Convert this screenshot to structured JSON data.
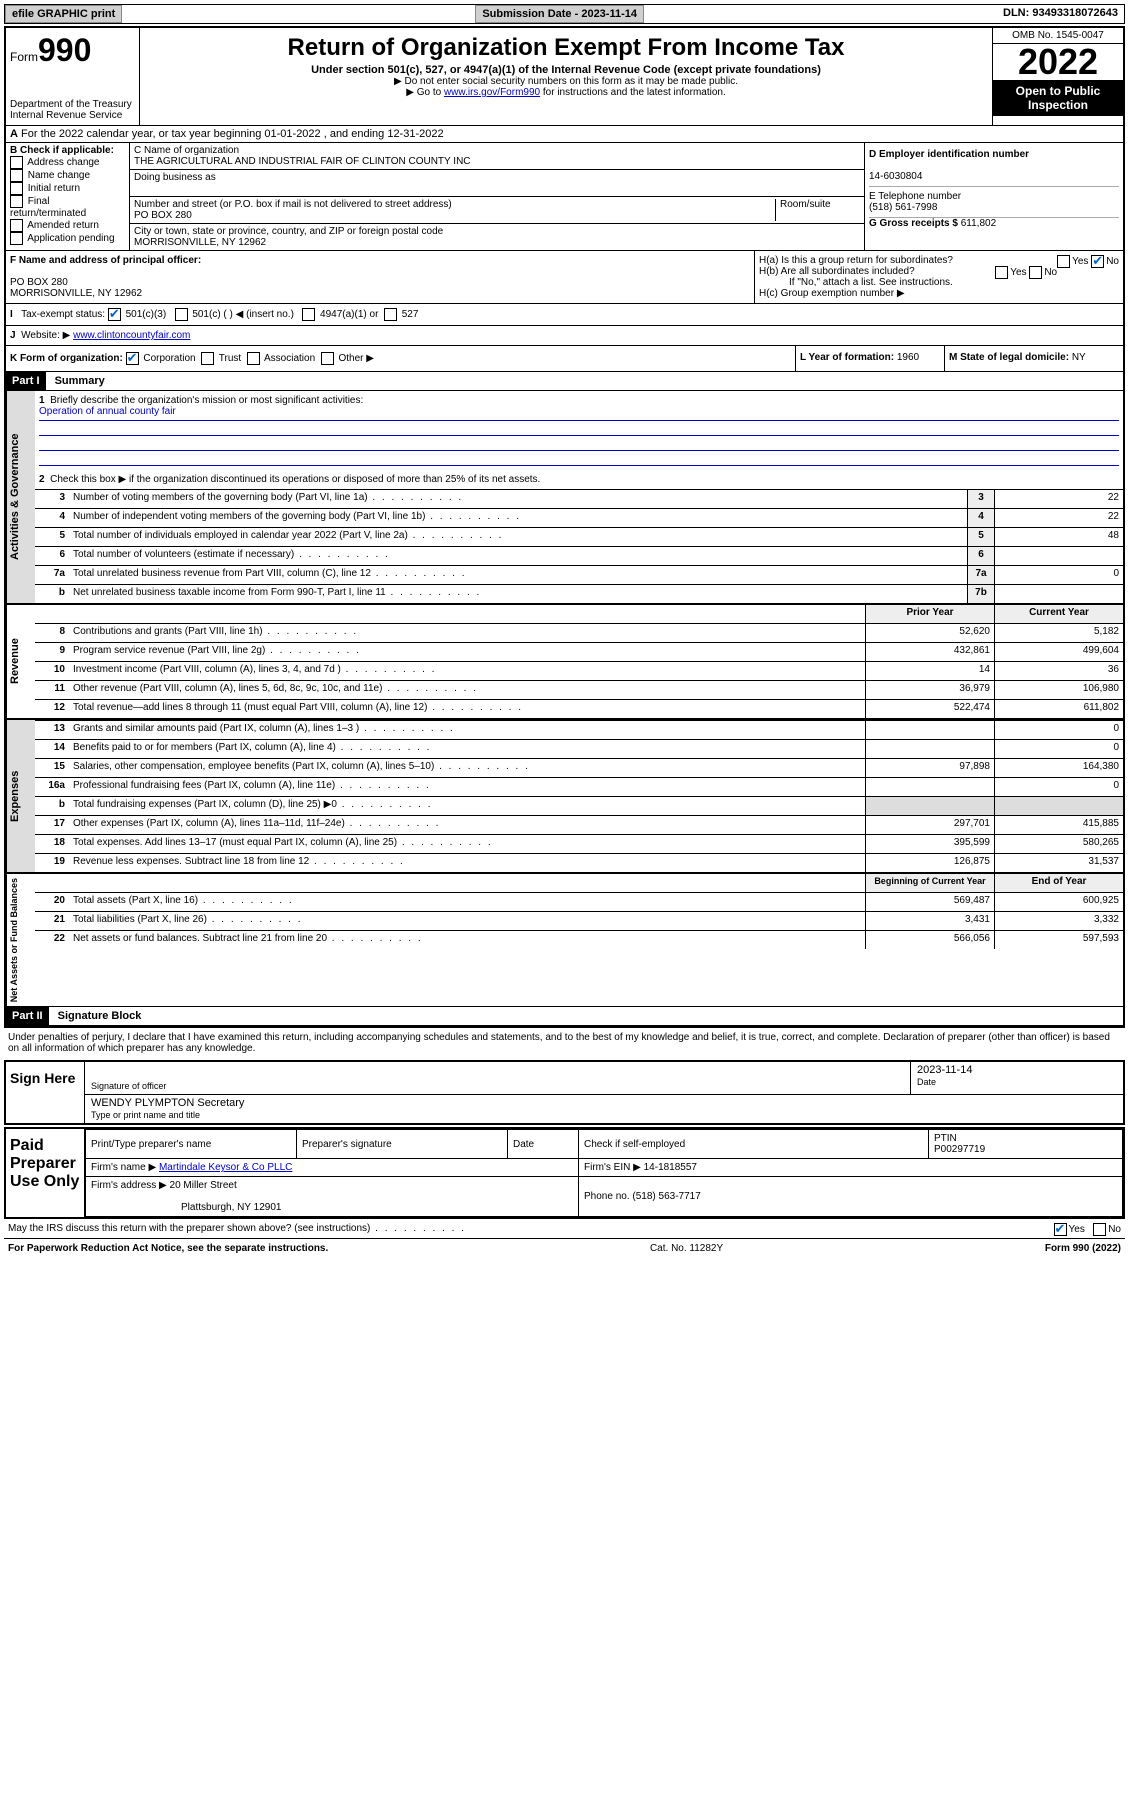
{
  "topbar": {
    "efile": "efile GRAPHIC print",
    "submission_label": "Submission Date - 2023-11-14",
    "dln": "DLN: 93493318072643"
  },
  "header": {
    "form_prefix": "Form",
    "form_number": "990",
    "dept": "Department of the Treasury\nInternal Revenue Service",
    "title": "Return of Organization Exempt From Income Tax",
    "subtitle": "Under section 501(c), 527, or 4947(a)(1) of the Internal Revenue Code (except private foundations)",
    "note1": "▶ Do not enter social security numbers on this form as it may be made public.",
    "note2_pre": "▶ Go to ",
    "note2_link": "www.irs.gov/Form990",
    "note2_post": " for instructions and the latest information.",
    "omb": "OMB No. 1545-0047",
    "year": "2022",
    "inspect": "Open to Public Inspection"
  },
  "row_a": "For the 2022 calendar year, or tax year beginning 01-01-2022   , and ending 12-31-2022",
  "section_b": {
    "label": "B Check if applicable:",
    "items": [
      "Address change",
      "Name change",
      "Initial return",
      "Final return/terminated",
      "Amended return",
      "Application pending"
    ]
  },
  "section_c": {
    "name_label": "C Name of organization",
    "name": "THE AGRICULTURAL AND INDUSTRIAL FAIR OF CLINTON COUNTY INC",
    "dba_label": "Doing business as",
    "street_label": "Number and street (or P.O. box if mail is not delivered to street address)",
    "suite_label": "Room/suite",
    "street": "PO BOX 280",
    "city_label": "City or town, state or province, country, and ZIP or foreign postal code",
    "city": "MORRISONVILLE, NY  12962"
  },
  "section_d": {
    "ein_label": "D Employer identification number",
    "ein": "14-6030804",
    "phone_label": "E Telephone number",
    "phone": "(518) 561-7998",
    "gross_label": "G Gross receipts $",
    "gross": "611,802"
  },
  "section_f": {
    "label": "F  Name and address of principal officer:",
    "addr1": "PO BOX 280",
    "addr2": "MORRISONVILLE, NY  12962"
  },
  "section_h": {
    "ha": "H(a)  Is this a group return for subordinates?",
    "hb": "H(b)  Are all subordinates included?",
    "hb_note": "If \"No,\" attach a list. See instructions.",
    "hc": "H(c)  Group exemption number ▶"
  },
  "row_i": {
    "label": "Tax-exempt status:",
    "opts": [
      "501(c)(3)",
      "501(c) (   ) ◀ (insert no.)",
      "4947(a)(1) or",
      "527"
    ]
  },
  "row_j": {
    "label": "Website: ▶",
    "value": "www.clintoncountyfair.com"
  },
  "row_k": {
    "label": "K Form of organization:",
    "opts": [
      "Corporation",
      "Trust",
      "Association",
      "Other ▶"
    ],
    "l_label": "L Year of formation:",
    "l_val": "1960",
    "m_label": "M State of legal domicile:",
    "m_val": "NY"
  },
  "part1": {
    "hdr": "Part I",
    "title": "Summary",
    "line1": "Briefly describe the organization's mission or most significant activities:",
    "mission": "Operation of annual county fair",
    "line2": "Check this box ▶        if the organization discontinued its operations or disposed of more than 25% of its net assets.",
    "tabs": {
      "gov": "Activities & Governance",
      "rev": "Revenue",
      "exp": "Expenses",
      "net": "Net Assets or Fund Balances"
    },
    "col_prior": "Prior Year",
    "col_current": "Current Year",
    "col_beg": "Beginning of Current Year",
    "col_end": "End of Year",
    "lines_gov": [
      {
        "n": "3",
        "d": "Number of voting members of the governing body (Part VI, line 1a)",
        "box": "3",
        "v": "22"
      },
      {
        "n": "4",
        "d": "Number of independent voting members of the governing body (Part VI, line 1b)",
        "box": "4",
        "v": "22"
      },
      {
        "n": "5",
        "d": "Total number of individuals employed in calendar year 2022 (Part V, line 2a)",
        "box": "5",
        "v": "48"
      },
      {
        "n": "6",
        "d": "Total number of volunteers (estimate if necessary)",
        "box": "6",
        "v": ""
      },
      {
        "n": "7a",
        "d": "Total unrelated business revenue from Part VIII, column (C), line 12",
        "box": "7a",
        "v": "0"
      },
      {
        "n": "b",
        "d": "Net unrelated business taxable income from Form 990-T, Part I, line 11",
        "box": "7b",
        "v": ""
      }
    ],
    "lines_rev": [
      {
        "n": "8",
        "d": "Contributions and grants (Part VIII, line 1h)",
        "p": "52,620",
        "c": "5,182"
      },
      {
        "n": "9",
        "d": "Program service revenue (Part VIII, line 2g)",
        "p": "432,861",
        "c": "499,604"
      },
      {
        "n": "10",
        "d": "Investment income (Part VIII, column (A), lines 3, 4, and 7d )",
        "p": "14",
        "c": "36"
      },
      {
        "n": "11",
        "d": "Other revenue (Part VIII, column (A), lines 5, 6d, 8c, 9c, 10c, and 11e)",
        "p": "36,979",
        "c": "106,980"
      },
      {
        "n": "12",
        "d": "Total revenue—add lines 8 through 11 (must equal Part VIII, column (A), line 12)",
        "p": "522,474",
        "c": "611,802"
      }
    ],
    "lines_exp": [
      {
        "n": "13",
        "d": "Grants and similar amounts paid (Part IX, column (A), lines 1–3 )",
        "p": "",
        "c": "0"
      },
      {
        "n": "14",
        "d": "Benefits paid to or for members (Part IX, column (A), line 4)",
        "p": "",
        "c": "0"
      },
      {
        "n": "15",
        "d": "Salaries, other compensation, employee benefits (Part IX, column (A), lines 5–10)",
        "p": "97,898",
        "c": "164,380"
      },
      {
        "n": "16a",
        "d": "Professional fundraising fees (Part IX, column (A), line 11e)",
        "p": "",
        "c": "0"
      },
      {
        "n": "b",
        "d": "Total fundraising expenses (Part IX, column (D), line 25) ▶0",
        "p": "",
        "c": "",
        "shade": true
      },
      {
        "n": "17",
        "d": "Other expenses (Part IX, column (A), lines 11a–11d, 11f–24e)",
        "p": "297,701",
        "c": "415,885"
      },
      {
        "n": "18",
        "d": "Total expenses. Add lines 13–17 (must equal Part IX, column (A), line 25)",
        "p": "395,599",
        "c": "580,265"
      },
      {
        "n": "19",
        "d": "Revenue less expenses. Subtract line 18 from line 12",
        "p": "126,875",
        "c": "31,537"
      }
    ],
    "lines_net": [
      {
        "n": "20",
        "d": "Total assets (Part X, line 16)",
        "p": "569,487",
        "c": "600,925"
      },
      {
        "n": "21",
        "d": "Total liabilities (Part X, line 26)",
        "p": "3,431",
        "c": "3,332"
      },
      {
        "n": "22",
        "d": "Net assets or fund balances. Subtract line 21 from line 20",
        "p": "566,056",
        "c": "597,593"
      }
    ]
  },
  "part2": {
    "hdr": "Part II",
    "title": "Signature Block",
    "perjury": "Under penalties of perjury, I declare that I have examined this return, including accompanying schedules and statements, and to the best of my knowledge and belief, it is true, correct, and complete. Declaration of preparer (other than officer) is based on all information of which preparer has any knowledge.",
    "sign_here": "Sign Here",
    "sig_officer": "Signature of officer",
    "sig_date": "2023-11-14",
    "date_label": "Date",
    "officer_name": "WENDY PLYMPTON Secretary",
    "type_name": "Type or print name and title",
    "paid": "Paid Preparer Use Only",
    "prep_name_label": "Print/Type preparer's name",
    "prep_sig_label": "Preparer's signature",
    "prep_date_label": "Date",
    "check_self": "Check         if self-employed",
    "ptin_label": "PTIN",
    "ptin": "P00297719",
    "firm_name_label": "Firm's name    ▶",
    "firm_name": "Martindale Keysor & Co PLLC",
    "firm_ein_label": "Firm's EIN ▶",
    "firm_ein": "14-1818557",
    "firm_addr_label": "Firm's address ▶",
    "firm_addr1": "20 Miller Street",
    "firm_addr2": "Plattsburgh, NY  12901",
    "firm_phone_label": "Phone no.",
    "firm_phone": "(518) 563-7717",
    "may_irs": "May the IRS discuss this return with the preparer shown above? (see instructions)"
  },
  "footer": {
    "left": "For Paperwork Reduction Act Notice, see the separate instructions.",
    "mid": "Cat. No. 11282Y",
    "right": "Form 990 (2022)"
  }
}
